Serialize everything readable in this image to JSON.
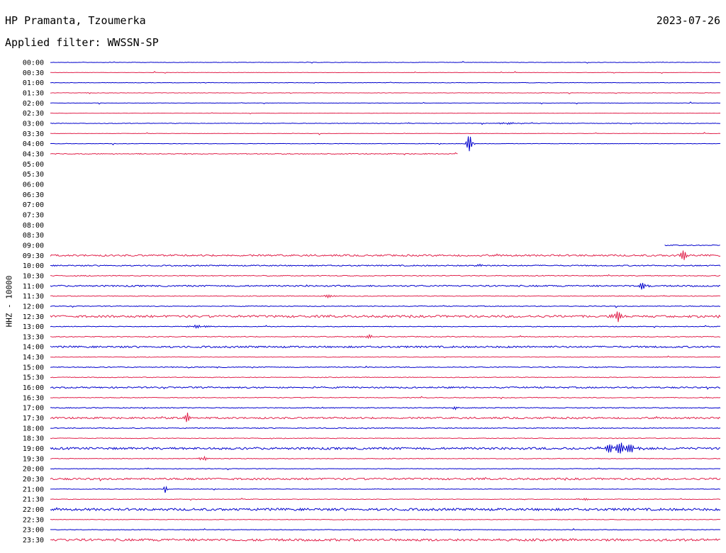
{
  "header": {
    "station": "HP Pramanta, Tzoumerka",
    "date": "2023-07-26",
    "filter_label": "Applied filter: WWSSN-SP"
  },
  "axis": {
    "ylabel": "HHZ - 10000"
  },
  "colors": {
    "hour_trace": "#0000cc",
    "half_hour_trace": "#e0204a",
    "text": "#000000"
  },
  "chart_data": {
    "type": "line",
    "title": "",
    "rows": [
      {
        "label": "00:00",
        "color": "blue",
        "coverage": [
          0,
          1
        ],
        "noise": 0.3,
        "events": []
      },
      {
        "label": "00:30",
        "color": "red",
        "coverage": [
          0,
          1
        ],
        "noise": 0.2,
        "events": []
      },
      {
        "label": "01:00",
        "color": "blue",
        "coverage": [
          0,
          1
        ],
        "noise": 0.3,
        "events": []
      },
      {
        "label": "01:30",
        "color": "red",
        "coverage": [
          0,
          1
        ],
        "noise": 0.3,
        "events": []
      },
      {
        "label": "02:00",
        "color": "blue",
        "coverage": [
          0,
          1
        ],
        "noise": 0.2,
        "events": []
      },
      {
        "label": "02:30",
        "color": "red",
        "coverage": [
          0,
          1
        ],
        "noise": 0.2,
        "events": []
      },
      {
        "label": "03:00",
        "color": "blue",
        "coverage": [
          0,
          1
        ],
        "noise": 0.4,
        "events": [
          {
            "t": 0.685,
            "amp": 1.5,
            "width": 0.02
          }
        ]
      },
      {
        "label": "03:30",
        "color": "red",
        "coverage": [
          0,
          1
        ],
        "noise": 0.2,
        "events": []
      },
      {
        "label": "04:00",
        "color": "blue",
        "coverage": [
          0,
          1
        ],
        "noise": 0.3,
        "events": [
          {
            "t": 0.627,
            "amp": 17,
            "width": 0.006
          }
        ]
      },
      {
        "label": "04:30",
        "color": "red",
        "coverage": [
          0,
          0.608
        ],
        "noise": 0.6,
        "events": []
      },
      {
        "label": "05:00",
        "color": "blue",
        "coverage": null,
        "noise": 0,
        "events": []
      },
      {
        "label": "05:30",
        "color": "red",
        "coverage": null,
        "noise": 0,
        "events": []
      },
      {
        "label": "06:00",
        "color": "blue",
        "coverage": null,
        "noise": 0,
        "events": []
      },
      {
        "label": "06:30",
        "color": "red",
        "coverage": null,
        "noise": 0,
        "events": []
      },
      {
        "label": "07:00",
        "color": "blue",
        "coverage": null,
        "noise": 0,
        "events": []
      },
      {
        "label": "07:30",
        "color": "red",
        "coverage": null,
        "noise": 0,
        "events": []
      },
      {
        "label": "08:00",
        "color": "blue",
        "coverage": null,
        "noise": 0,
        "events": []
      },
      {
        "label": "08:30",
        "color": "red",
        "coverage": null,
        "noise": 0,
        "events": []
      },
      {
        "label": "09:00",
        "color": "blue",
        "coverage": [
          0.917,
          1
        ],
        "noise": 0.6,
        "events": []
      },
      {
        "label": "09:30",
        "color": "red",
        "coverage": [
          0,
          1
        ],
        "noise": 1.2,
        "events": [
          {
            "t": 0.945,
            "amp": 8,
            "width": 0.008
          }
        ]
      },
      {
        "label": "10:00",
        "color": "blue",
        "coverage": [
          0,
          1
        ],
        "noise": 0.8,
        "events": [
          {
            "t": 0.64,
            "amp": 2,
            "width": 0.01
          }
        ]
      },
      {
        "label": "10:30",
        "color": "red",
        "coverage": [
          0,
          1
        ],
        "noise": 0.6,
        "events": []
      },
      {
        "label": "11:00",
        "color": "blue",
        "coverage": [
          0,
          1
        ],
        "noise": 1.0,
        "events": [
          {
            "t": 0.885,
            "amp": 7,
            "width": 0.008
          }
        ]
      },
      {
        "label": "11:30",
        "color": "red",
        "coverage": [
          0,
          1
        ],
        "noise": 0.5,
        "events": [
          {
            "t": 0.417,
            "amp": 3,
            "width": 0.008
          }
        ]
      },
      {
        "label": "12:00",
        "color": "blue",
        "coverage": [
          0,
          1
        ],
        "noise": 0.5,
        "events": []
      },
      {
        "label": "12:30",
        "color": "red",
        "coverage": [
          0,
          1
        ],
        "noise": 1.5,
        "events": [
          {
            "t": 0.846,
            "amp": 8,
            "width": 0.009
          }
        ]
      },
      {
        "label": "13:00",
        "color": "blue",
        "coverage": [
          0,
          1
        ],
        "noise": 0.5,
        "events": [
          {
            "t": 0.22,
            "amp": 2,
            "width": 0.02
          }
        ]
      },
      {
        "label": "13:30",
        "color": "red",
        "coverage": [
          0,
          1
        ],
        "noise": 0.6,
        "events": [
          {
            "t": 0.473,
            "amp": 3,
            "width": 0.01
          }
        ]
      },
      {
        "label": "14:00",
        "color": "blue",
        "coverage": [
          0,
          1
        ],
        "noise": 1.2,
        "events": []
      },
      {
        "label": "14:30",
        "color": "red",
        "coverage": [
          0,
          1
        ],
        "noise": 0.4,
        "events": []
      },
      {
        "label": "15:00",
        "color": "blue",
        "coverage": [
          0,
          1
        ],
        "noise": 0.6,
        "events": []
      },
      {
        "label": "15:30",
        "color": "red",
        "coverage": [
          0,
          1
        ],
        "noise": 0.5,
        "events": []
      },
      {
        "label": "16:00",
        "color": "blue",
        "coverage": [
          0,
          1
        ],
        "noise": 1.0,
        "events": []
      },
      {
        "label": "16:30",
        "color": "red",
        "coverage": [
          0,
          1
        ],
        "noise": 0.5,
        "events": [
          {
            "t": 0.985,
            "amp": 2,
            "width": 0.008
          }
        ]
      },
      {
        "label": "17:00",
        "color": "blue",
        "coverage": [
          0,
          1
        ],
        "noise": 0.6,
        "events": [
          {
            "t": 0.603,
            "amp": 3,
            "width": 0.005
          }
        ]
      },
      {
        "label": "17:30",
        "color": "red",
        "coverage": [
          0,
          1
        ],
        "noise": 1.2,
        "events": [
          {
            "t": 0.206,
            "amp": 9,
            "width": 0.006
          }
        ]
      },
      {
        "label": "18:00",
        "color": "blue",
        "coverage": [
          0,
          1
        ],
        "noise": 0.6,
        "events": []
      },
      {
        "label": "18:30",
        "color": "red",
        "coverage": [
          0,
          1
        ],
        "noise": 0.5,
        "events": []
      },
      {
        "label": "19:00",
        "color": "blue",
        "coverage": [
          0,
          1
        ],
        "noise": 1.5,
        "events": [
          {
            "t": 0.85,
            "amp": 10,
            "width": 0.03
          }
        ]
      },
      {
        "label": "19:30",
        "color": "red",
        "coverage": [
          0,
          1
        ],
        "noise": 0.5,
        "events": [
          {
            "t": 0.228,
            "amp": 6,
            "width": 0.006
          }
        ]
      },
      {
        "label": "20:00",
        "color": "blue",
        "coverage": [
          0,
          1
        ],
        "noise": 0.4,
        "events": []
      },
      {
        "label": "20:30",
        "color": "red",
        "coverage": [
          0,
          1
        ],
        "noise": 1.3,
        "events": []
      },
      {
        "label": "21:00",
        "color": "blue",
        "coverage": [
          0,
          1
        ],
        "noise": 0.4,
        "events": [
          {
            "t": 0.172,
            "amp": 6,
            "width": 0.003
          }
        ]
      },
      {
        "label": "21:30",
        "color": "red",
        "coverage": [
          0,
          1
        ],
        "noise": 0.4,
        "events": [
          {
            "t": 0.795,
            "amp": 2,
            "width": 0.01
          }
        ]
      },
      {
        "label": "22:00",
        "color": "blue",
        "coverage": [
          0,
          1
        ],
        "noise": 1.6,
        "events": []
      },
      {
        "label": "22:30",
        "color": "red",
        "coverage": [
          0,
          1
        ],
        "noise": 0.4,
        "events": []
      },
      {
        "label": "23:00",
        "color": "blue",
        "coverage": [
          0,
          1
        ],
        "noise": 0.4,
        "events": []
      },
      {
        "label": "23:30",
        "color": "red",
        "coverage": [
          0,
          1
        ],
        "noise": 1.6,
        "events": []
      }
    ]
  }
}
